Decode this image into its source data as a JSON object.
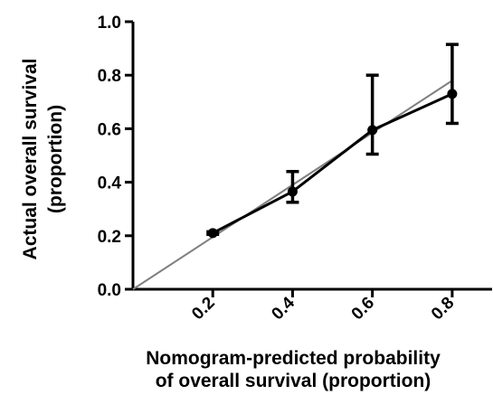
{
  "chart_data": {
    "type": "line",
    "title": "",
    "xlabel_lines": [
      "Nomogram-predicted probability",
      "of overall survival (proportion)"
    ],
    "ylabel_lines": [
      "Actual overall survival",
      "(proportion)"
    ],
    "xlim": [
      0.0,
      0.9
    ],
    "ylim": [
      0.0,
      1.0
    ],
    "x_ticks": [
      0.2,
      0.4,
      0.6,
      0.8
    ],
    "x_tick_labels": [
      "0.2",
      "0.4",
      "0.6",
      "0.8"
    ],
    "y_ticks": [
      0.0,
      0.2,
      0.4,
      0.6,
      0.8,
      1.0
    ],
    "y_tick_labels": [
      "0.0",
      "0.2",
      "0.4",
      "0.6",
      "0.8",
      "1.0"
    ],
    "grid": false,
    "legend": "none",
    "series": [
      {
        "style": "points-with-error-bars",
        "color": "#000000",
        "points": [
          {
            "x": 0.2,
            "y": 0.21,
            "err_low": 0.205,
            "err_high": 0.215
          },
          {
            "x": 0.4,
            "y": 0.365,
            "err_low": 0.325,
            "err_high": 0.44
          },
          {
            "x": 0.6,
            "y": 0.595,
            "err_low": 0.505,
            "err_high": 0.8
          },
          {
            "x": 0.8,
            "y": 0.73,
            "err_low": 0.62,
            "err_high": 0.915
          }
        ]
      },
      {
        "style": "reference-line",
        "color": "#808080",
        "points": [
          {
            "x": 0.0,
            "y": 0.0
          },
          {
            "x": 0.8,
            "y": 0.78
          }
        ]
      }
    ]
  }
}
